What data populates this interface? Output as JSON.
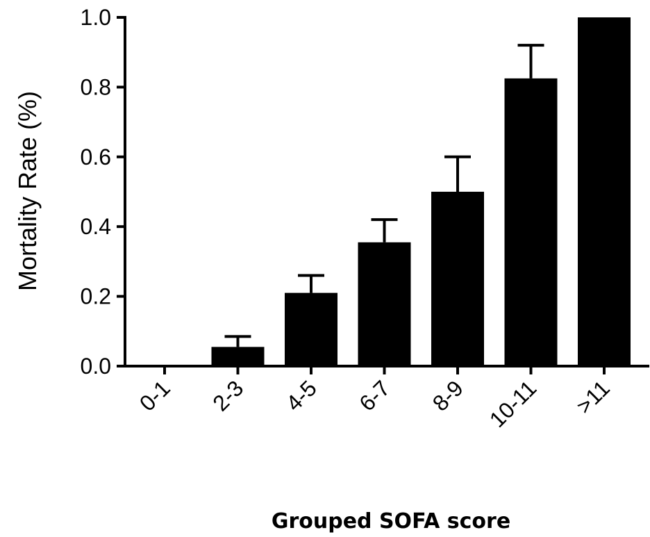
{
  "chart_data": {
    "type": "bar",
    "categories": [
      "0-1",
      "2-3",
      "4-5",
      "6-7",
      "8-9",
      "10-11",
      ">11"
    ],
    "values": [
      0.0,
      0.055,
      0.21,
      0.355,
      0.5,
      0.825,
      1.0
    ],
    "error_upper": [
      0.0,
      0.085,
      0.26,
      0.42,
      0.6,
      0.92,
      1.0
    ],
    "title": "",
    "xlabel": "Grouped SOFA score",
    "ylabel": "Mortality Rate (%)",
    "ylim": [
      0,
      1.0
    ],
    "yticks": [
      "0.0",
      "0.2",
      "0.4",
      "0.6",
      "0.8",
      "1.0"
    ],
    "ytick_values": [
      0.0,
      0.2,
      0.4,
      0.6,
      0.8,
      1.0
    ],
    "grid": false,
    "bar_color": "#000000"
  }
}
